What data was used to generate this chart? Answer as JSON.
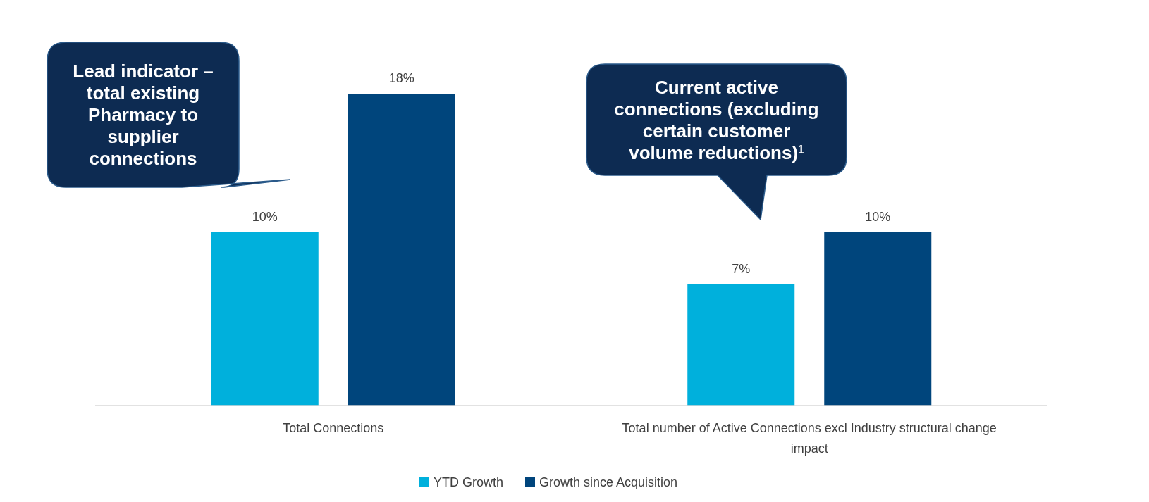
{
  "chart_data": {
    "type": "bar",
    "categories": [
      "Total Connections",
      "Total number of Active Connections excl Industry structural change impact"
    ],
    "series": [
      {
        "name": "YTD Growth",
        "color": "#00b0dc",
        "values": [
          10,
          7
        ],
        "value_labels": [
          "10%",
          "7%"
        ]
      },
      {
        "name": "Growth since Acquisition",
        "color": "#00457c",
        "values": [
          18,
          10
        ],
        "value_labels": [
          "18%",
          "10%"
        ]
      }
    ],
    "ylim": [
      0,
      18
    ],
    "legend": "bottom",
    "annotations": [
      "Lead indicator – total existing Pharmacy to supplier connections",
      "Current active connections (excluding certain customer volume reductions)$^{1}$"
    ]
  }
}
